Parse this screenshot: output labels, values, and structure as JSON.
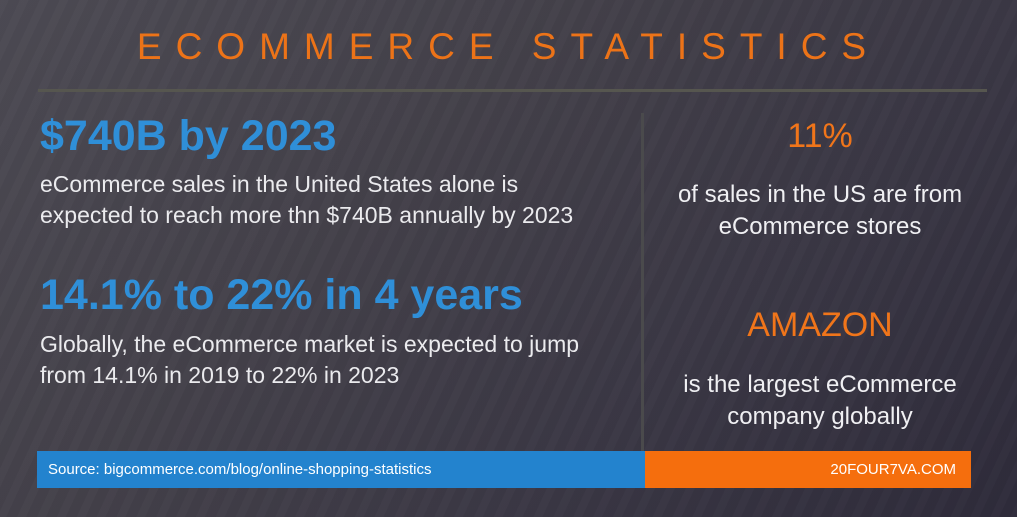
{
  "title": "ECOMMERCE STATISTICS",
  "left_column": {
    "stats": [
      {
        "headline": "$740B by 2023",
        "description": "eCommerce sales in the United States alone is expected to reach more thn $740B annually by 2023"
      },
      {
        "headline": "14.1% to 22% in 4 years",
        "description": "Globally, the eCommerce market is expected to jump from 14.1% in 2019 to 22% in 2023"
      }
    ]
  },
  "right_column": {
    "stats": [
      {
        "headline": "11%",
        "description": "of sales in the US are from eCommerce stores"
      },
      {
        "headline": "AMAZON",
        "description": "is the largest eCommerce company globally"
      }
    ]
  },
  "footer": {
    "source_label": "Source: bigcommerce.com/blog/online-shopping-statistics",
    "website": "20FOUR7VA.COM"
  },
  "colors": {
    "accent_orange": "#ec7318",
    "stat_orange": "#f0751a",
    "stat_blue": "#2f8fd8",
    "bar_blue": "#2383ce",
    "bar_orange": "#f56e0d",
    "body_text": "#ebebee",
    "background_dark": "#2e2b3a",
    "background_light": "#4c4a53",
    "divider_gray": "#56564f"
  }
}
